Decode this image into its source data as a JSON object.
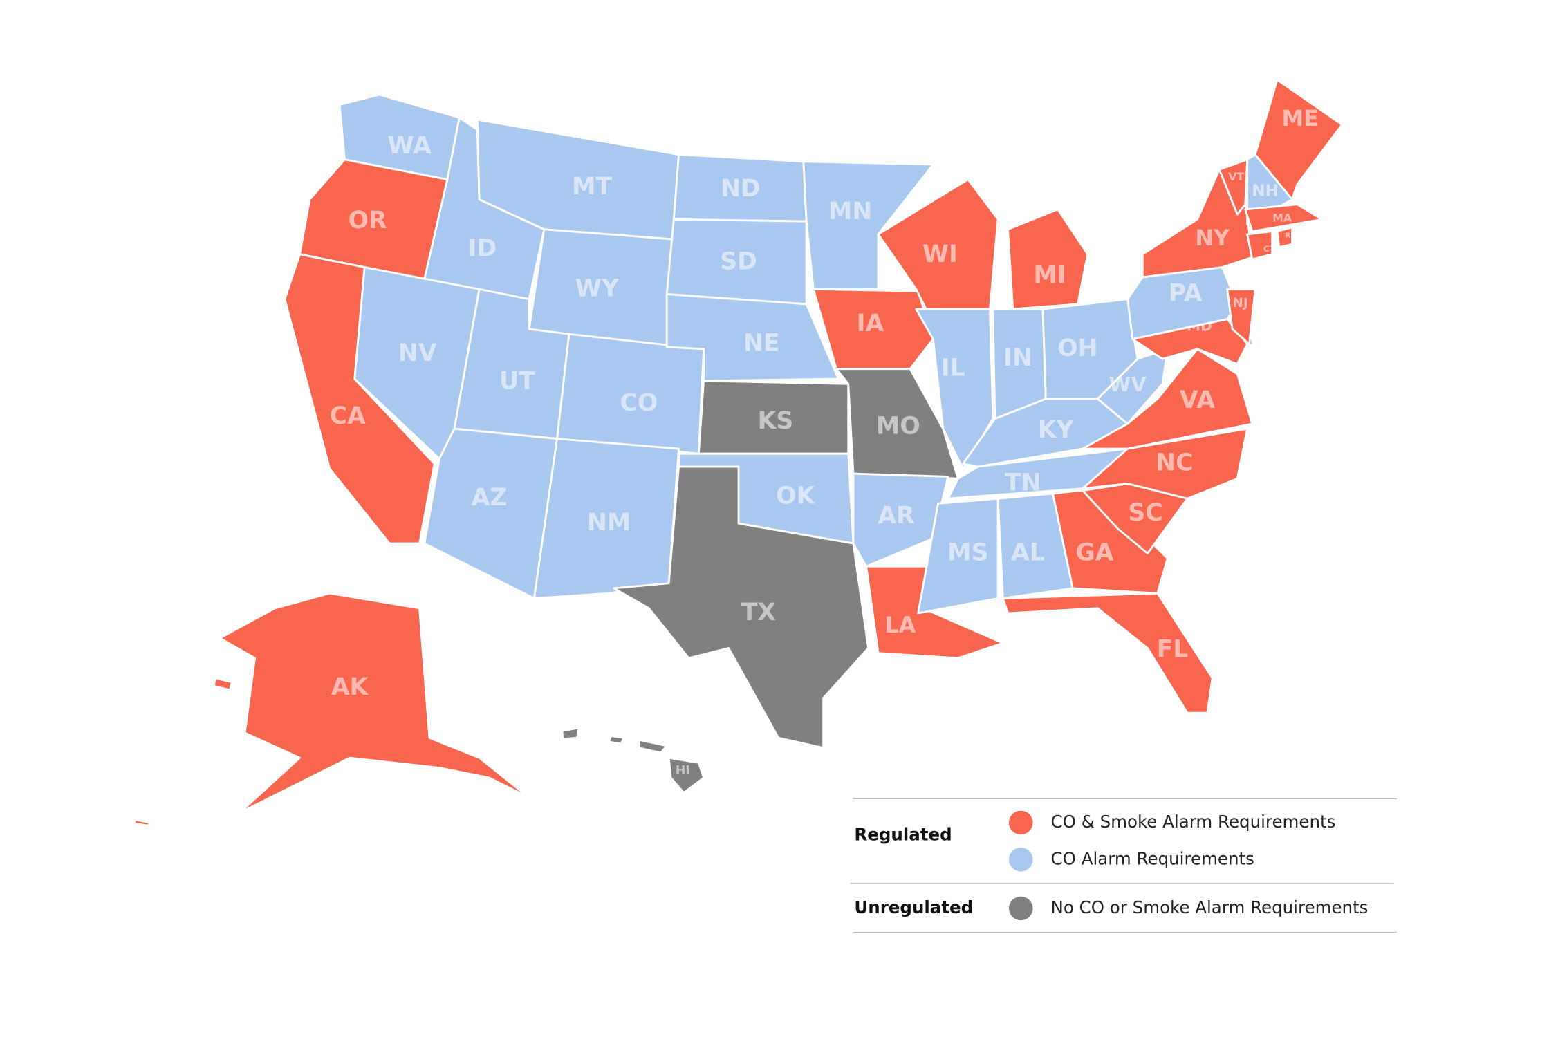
{
  "states": [
    {
      "label": "WA",
      "color": "#a8c8ef"
    },
    {
      "label": "OR",
      "color": "#f86650"
    },
    {
      "label": "CA",
      "color": "#f86650"
    },
    {
      "label": "ID",
      "color": "#a8c8ef"
    },
    {
      "label": "NV",
      "color": "#a8c8ef"
    },
    {
      "label": "MT",
      "color": "#a8c8ef"
    },
    {
      "label": "WY",
      "color": "#a8c8ef"
    },
    {
      "label": "UT",
      "color": "#a8c8ef"
    },
    {
      "label": "CO",
      "color": "#a8c8ef"
    },
    {
      "label": "AZ",
      "color": "#a8c8ef"
    },
    {
      "label": "NM",
      "color": "#a8c8ef"
    },
    {
      "label": "ND",
      "color": "#a8c8ef"
    },
    {
      "label": "SD",
      "color": "#a8c8ef"
    },
    {
      "label": "NE",
      "color": "#a8c8ef"
    },
    {
      "label": "KS",
      "color": "#808080"
    },
    {
      "label": "OK",
      "color": "#a8c8ef"
    },
    {
      "label": "TX",
      "color": "#808080"
    },
    {
      "label": "MN",
      "color": "#a8c8ef"
    },
    {
      "label": "IA",
      "color": "#f86650"
    },
    {
      "label": "MO",
      "color": "#808080"
    },
    {
      "label": "AR",
      "color": "#a8c8ef"
    },
    {
      "label": "LA",
      "color": "#f86650"
    },
    {
      "label": "WI",
      "color": "#f86650"
    },
    {
      "label": "MI",
      "color": "#f86650"
    },
    {
      "label": "IL",
      "color": "#a8c8ef"
    },
    {
      "label": "IN",
      "color": "#a8c8ef"
    },
    {
      "label": "OH",
      "color": "#a8c8ef"
    },
    {
      "label": "KY",
      "color": "#a8c8ef"
    },
    {
      "label": "TN",
      "color": "#a8c8ef"
    },
    {
      "label": "MS",
      "color": "#a8c8ef"
    },
    {
      "label": "AL",
      "color": "#a8c8ef"
    },
    {
      "label": "GA",
      "color": "#f86650"
    },
    {
      "label": "FL",
      "color": "#f86650"
    },
    {
      "label": "SC",
      "color": "#f86650"
    },
    {
      "label": "NC",
      "color": "#f86650"
    },
    {
      "label": "VA",
      "color": "#f86650"
    },
    {
      "label": "WV",
      "color": "#a8c8ef"
    },
    {
      "label": "MD",
      "color": "#f86650"
    },
    {
      "label": "PA",
      "color": "#a8c8ef"
    },
    {
      "label": "NY",
      "color": "#f86650"
    },
    {
      "label": "NJ",
      "color": "#f86650"
    },
    {
      "label": "VT",
      "color": "#f86650"
    },
    {
      "label": "NH",
      "color": "#a8c8ef"
    },
    {
      "label": "ME",
      "color": "#f86650"
    },
    {
      "label": "MA",
      "color": "#f86650"
    },
    {
      "label": "CT",
      "color": "#f86650"
    },
    {
      "label": "RI",
      "color": "#f86650"
    },
    {
      "label": "AK",
      "color": "#f86650"
    },
    {
      "label": "HI",
      "color": "#808080"
    }
  ],
  "legend": {
    "groups": [
      {
        "title": "Regulated",
        "items": [
          {
            "label": "CO & Smoke Alarm Requirements",
            "color": "#f86650"
          },
          {
            "label": "CO Alarm Requirements",
            "color": "#a8c8ef"
          }
        ]
      },
      {
        "title": "Unregulated",
        "items": [
          {
            "label": "No CO or Smoke Alarm Requirements",
            "color": "#808080"
          }
        ]
      }
    ]
  }
}
